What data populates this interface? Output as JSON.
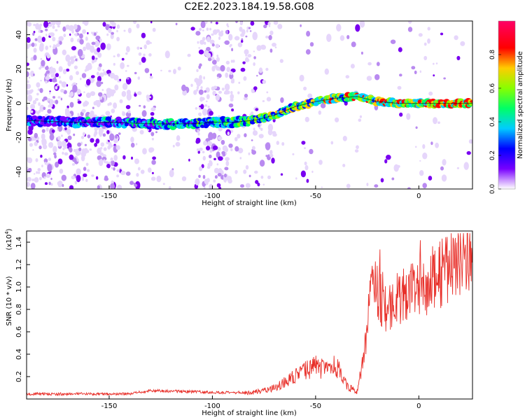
{
  "title": "C2E2.2023.184.19.58.G08",
  "chart_data": [
    {
      "type": "heatmap",
      "name": "spectrogram",
      "title": "C2E2.2023.184.19.58.G08",
      "xlabel": "Height of straight line (km)",
      "ylabel": "Frequency (Hz)",
      "xlim": [
        -190,
        26
      ],
      "ylim": [
        -50,
        48
      ],
      "xticks": [
        -150,
        -100,
        -50,
        0
      ],
      "yticks": [
        -40,
        -20,
        0,
        20,
        40
      ],
      "colorbar": {
        "label": "Normalized spectral amplitude",
        "range": [
          0,
          1
        ],
        "ticks": [
          "0.0",
          "0.2",
          "0.4",
          "0.6",
          "0.8"
        ],
        "colors": [
          "#ffffff",
          "#cc99ff",
          "#7700ff",
          "#0000ff",
          "#00ccff",
          "#00ff66",
          "#88ff00",
          "#ffcc00",
          "#ff0000",
          "#ff0066"
        ]
      },
      "ridge": {
        "x": [
          -190,
          -170,
          -150,
          -130,
          -110,
          -100,
          -90,
          -80,
          -70,
          -60,
          -50,
          -40,
          -30,
          -20,
          -10,
          0,
          10,
          26
        ],
        "y": [
          -10,
          -11,
          -11,
          -12,
          -12,
          -11,
          -11,
          -10,
          -7,
          -2,
          1,
          3,
          4,
          1,
          0,
          0,
          0,
          0
        ]
      }
    },
    {
      "type": "line",
      "name": "snr",
      "xlabel": "Height of straight line (km)",
      "ylabel": "SNR (10 * v/v)",
      "yscale_label": "(x10",
      "yscale_exp": "4",
      "yscale_close": ")",
      "xlim": [
        -190,
        26
      ],
      "ylim": [
        0,
        1.5
      ],
      "xticks": [
        -150,
        -100,
        -50,
        0
      ],
      "yticks": [
        "0.2",
        "0.4",
        "0.6",
        "0.8",
        "1.0",
        "1.2",
        "1.4"
      ],
      "color": "#e8302a",
      "envelope": {
        "x": [
          -190,
          -140,
          -130,
          -110,
          -90,
          -80,
          -70,
          -60,
          -55,
          -50,
          -45,
          -40,
          -35,
          -30,
          -28,
          -26,
          -24,
          -22,
          -20,
          -18,
          -15,
          -10,
          -5,
          0,
          5,
          10,
          15,
          20,
          26
        ],
        "y": [
          0.04,
          0.04,
          0.07,
          0.06,
          0.05,
          0.06,
          0.1,
          0.2,
          0.25,
          0.3,
          0.25,
          0.3,
          0.12,
          0.06,
          0.25,
          0.5,
          0.8,
          1.0,
          1.0,
          0.85,
          0.8,
          0.9,
          0.95,
          0.95,
          1.05,
          1.1,
          1.2,
          1.25,
          1.35
        ]
      }
    }
  ]
}
